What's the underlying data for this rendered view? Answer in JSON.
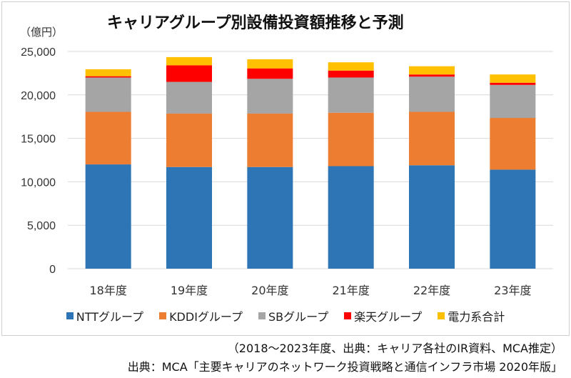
{
  "chart_data": {
    "type": "bar",
    "stacked": true,
    "title": "キャリアグループ別設備投資額推移と予測",
    "ylabel": "（億円）",
    "xlabel": "",
    "ylim": [
      0,
      25000
    ],
    "yticks": [
      "0",
      "5,000",
      "10,000",
      "15,000",
      "20,000",
      "25,000"
    ],
    "ytick_values": [
      0,
      5000,
      10000,
      15000,
      20000,
      25000
    ],
    "grid": true,
    "legend_position": "bottom",
    "categories": [
      "18年度",
      "19年度",
      "20年度",
      "21年度",
      "22年度",
      "23年度"
    ],
    "series": [
      {
        "name": "NTTグループ",
        "color": "#2e75b6",
        "values": [
          12000,
          11700,
          11700,
          11800,
          11900,
          11400
        ]
      },
      {
        "name": "KDDIグループ",
        "color": "#ed7d31",
        "values": [
          6050,
          6150,
          6150,
          6150,
          6150,
          5950
        ]
      },
      {
        "name": "SBグループ",
        "color": "#a5a5a5",
        "values": [
          3950,
          3650,
          4000,
          4050,
          4050,
          3800
        ]
      },
      {
        "name": "楽天グループ",
        "color": "#ff0000",
        "values": [
          150,
          1900,
          1200,
          800,
          250,
          250
        ]
      },
      {
        "name": "電力系合計",
        "color": "#ffc000",
        "values": [
          800,
          950,
          1050,
          950,
          950,
          950
        ]
      }
    ]
  },
  "notes": {
    "line1": "（2018～2023年度、出典：キャリア各社のIR資料、MCA推定）",
    "line2": "出典：MCA「主要キャリアのネットワーク投資戦略と通信インフラ市場 2020年版」"
  }
}
